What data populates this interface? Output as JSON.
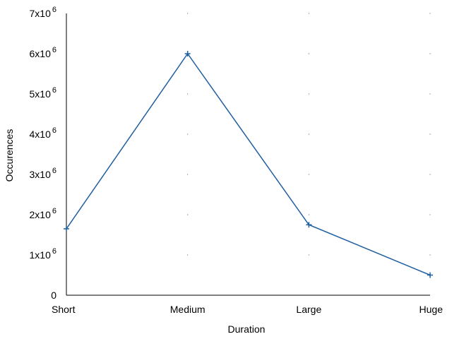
{
  "chart_data": {
    "type": "line",
    "title": "",
    "xlabel": "Duration",
    "ylabel": "Occurences",
    "categories": [
      "Short",
      "Medium",
      "Large",
      "Huge"
    ],
    "series": [
      {
        "values": [
          1650000,
          6000000,
          1750000,
          500000
        ],
        "color": "#1f5fa0",
        "marker": "plus"
      }
    ],
    "ylim": [
      0,
      7000000
    ],
    "yticks": [
      {
        "value": 0,
        "base": "0",
        "exp": ""
      },
      {
        "value": 1000000,
        "base": "1x10",
        "exp": "6"
      },
      {
        "value": 2000000,
        "base": "2x10",
        "exp": "6"
      },
      {
        "value": 3000000,
        "base": "3x10",
        "exp": "6"
      },
      {
        "value": 4000000,
        "base": "4x10",
        "exp": "6"
      },
      {
        "value": 5000000,
        "base": "5x10",
        "exp": "6"
      },
      {
        "value": 6000000,
        "base": "6x10",
        "exp": "6"
      },
      {
        "value": 7000000,
        "base": "7x10",
        "exp": "6"
      }
    ],
    "grid": "dots",
    "legend": "none"
  }
}
